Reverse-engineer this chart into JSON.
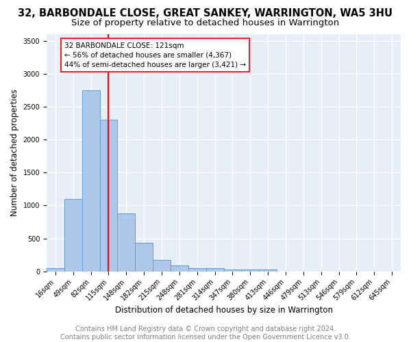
{
  "title1": "32, BARBONDALE CLOSE, GREAT SANKEY, WARRINGTON, WA5 3HU",
  "title2": "Size of property relative to detached houses in Warrington",
  "xlabel": "Distribution of detached houses by size in Warrington",
  "ylabel": "Number of detached properties",
  "bar_values": [
    55,
    1100,
    2750,
    2300,
    880,
    430,
    175,
    95,
    55,
    45,
    30,
    25,
    30,
    0,
    0,
    0,
    0,
    0,
    0,
    0
  ],
  "bin_labels": [
    "16sqm",
    "49sqm",
    "82sqm",
    "115sqm",
    "148sqm",
    "182sqm",
    "215sqm",
    "248sqm",
    "281sqm",
    "314sqm",
    "347sqm",
    "380sqm",
    "413sqm",
    "446sqm",
    "479sqm",
    "513sqm",
    "546sqm",
    "579sqm",
    "612sqm",
    "645sqm"
  ],
  "bar_color": "#aec6e8",
  "bar_edge_color": "#5a9fd4",
  "vline_x": 3.0,
  "vline_color": "red",
  "annotation_text": "32 BARBONDALE CLOSE: 121sqm\n← 56% of detached houses are smaller (4,367)\n44% of semi-detached houses are larger (3,421) →",
  "annotation_box_color": "white",
  "annotation_box_edge": "red",
  "ylim": [
    0,
    3600
  ],
  "yticks": [
    0,
    500,
    1000,
    1500,
    2000,
    2500,
    3000,
    3500
  ],
  "background_color": "#e8eef8",
  "grid_color": "white",
  "footer_text": "Contains HM Land Registry data © Crown copyright and database right 2024.\nContains public sector information licensed under the Open Government Licence v3.0.",
  "title1_fontsize": 10.5,
  "title2_fontsize": 9.5,
  "xlabel_fontsize": 8.5,
  "ylabel_fontsize": 8.5,
  "footer_fontsize": 7.0,
  "annot_fontsize": 7.5,
  "tick_fontsize": 7.0
}
